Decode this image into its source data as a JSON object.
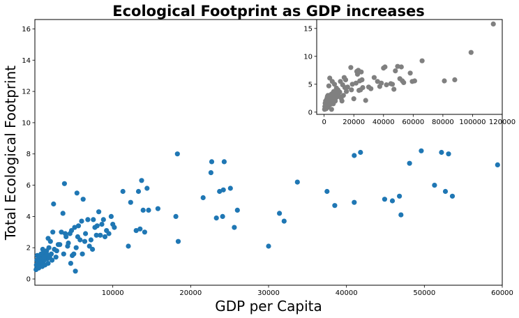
{
  "chart_data": [
    {
      "type": "scatter",
      "title": "Ecological Footprint as GDP increases",
      "xlabel": "GDP per Capita",
      "ylabel": "Total Ecological Footprint",
      "xlim": [
        0,
        60000
      ],
      "ylim": [
        -0.4,
        16.6
      ],
      "xticks": [
        10000,
        20000,
        30000,
        40000,
        50000,
        60000
      ],
      "yticks": [
        0,
        2,
        4,
        6,
        8,
        10,
        12,
        14,
        16
      ],
      "grid": false,
      "color": "#1f77b4",
      "points": [
        [
          150,
          0.6
        ],
        [
          200,
          0.9
        ],
        [
          250,
          1.2
        ],
        [
          300,
          1.5
        ],
        [
          350,
          0.8
        ],
        [
          400,
          1.1
        ],
        [
          450,
          1.4
        ],
        [
          500,
          0.7
        ],
        [
          550,
          1.3
        ],
        [
          600,
          1.0
        ],
        [
          650,
          1.5
        ],
        [
          700,
          0.9
        ],
        [
          750,
          1.2
        ],
        [
          800,
          1.6
        ],
        [
          850,
          1.0
        ],
        [
          900,
          1.3
        ],
        [
          950,
          0.8
        ],
        [
          1000,
          1.1
        ],
        [
          1100,
          1.7
        ],
        [
          1200,
          1.2
        ],
        [
          1300,
          0.9
        ],
        [
          1400,
          1.5
        ],
        [
          1500,
          1.8
        ],
        [
          1600,
          1.3
        ],
        [
          1700,
          1.0
        ],
        [
          1800,
          2.0
        ],
        [
          1900,
          1.4
        ],
        [
          2000,
          2.4
        ],
        [
          2100,
          1.6
        ],
        [
          2200,
          1.2
        ],
        [
          1000,
          1.9
        ],
        [
          1200,
          1.4
        ],
        [
          1500,
          1.6
        ],
        [
          1700,
          2.6
        ],
        [
          2300,
          3.0
        ],
        [
          2400,
          4.8
        ],
        [
          2500,
          1.9
        ],
        [
          2700,
          1.4
        ],
        [
          2800,
          1.8
        ],
        [
          3000,
          2.2
        ],
        [
          3200,
          2.2
        ],
        [
          3400,
          3.0
        ],
        [
          3600,
          4.2
        ],
        [
          3700,
          1.6
        ],
        [
          3800,
          6.1
        ],
        [
          3900,
          2.9
        ],
        [
          4000,
          2.7
        ],
        [
          4200,
          2.1
        ],
        [
          4300,
          2.3
        ],
        [
          4500,
          2.9
        ],
        [
          4600,
          1.0
        ],
        [
          4700,
          3.1
        ],
        [
          4800,
          1.5
        ],
        [
          5000,
          1.6
        ],
        [
          5100,
          3.3
        ],
        [
          5200,
          0.5
        ],
        [
          5300,
          2.0
        ],
        [
          5400,
          5.5
        ],
        [
          5500,
          2.7
        ],
        [
          5600,
          3.4
        ],
        [
          5800,
          2.5
        ],
        [
          6000,
          3.7
        ],
        [
          6100,
          1.6
        ],
        [
          6200,
          5.1
        ],
        [
          6400,
          2.4
        ],
        [
          6500,
          2.9
        ],
        [
          6800,
          3.8
        ],
        [
          7000,
          2.1
        ],
        [
          7200,
          2.5
        ],
        [
          7400,
          1.9
        ],
        [
          7500,
          3.8
        ],
        [
          7700,
          3.3
        ],
        [
          7900,
          2.8
        ],
        [
          8000,
          3.4
        ],
        [
          8200,
          4.3
        ],
        [
          8400,
          2.8
        ],
        [
          8600,
          3.5
        ],
        [
          8800,
          3.8
        ],
        [
          9000,
          2.7
        ],
        [
          9200,
          3.1
        ],
        [
          9500,
          2.9
        ],
        [
          9800,
          4.0
        ],
        [
          10000,
          3.5
        ],
        [
          10200,
          3.3
        ],
        [
          11300,
          5.6
        ],
        [
          12000,
          2.1
        ],
        [
          12300,
          4.9
        ],
        [
          13000,
          3.1
        ],
        [
          13300,
          5.6
        ],
        [
          13500,
          3.2
        ],
        [
          13700,
          6.3
        ],
        [
          13900,
          4.4
        ],
        [
          14100,
          3.0
        ],
        [
          14400,
          5.8
        ],
        [
          14600,
          4.4
        ],
        [
          15800,
          4.5
        ],
        [
          18100,
          4.0
        ],
        [
          18300,
          8.0
        ],
        [
          18400,
          2.4
        ],
        [
          21600,
          5.2
        ],
        [
          22600,
          6.8
        ],
        [
          22700,
          7.5
        ],
        [
          23300,
          3.9
        ],
        [
          23700,
          5.6
        ],
        [
          24100,
          4.0
        ],
        [
          24200,
          5.7
        ],
        [
          24300,
          7.5
        ],
        [
          25100,
          5.8
        ],
        [
          25600,
          3.3
        ],
        [
          26000,
          4.4
        ],
        [
          30000,
          2.1
        ],
        [
          31400,
          4.2
        ],
        [
          32000,
          3.7
        ],
        [
          33700,
          6.2
        ],
        [
          37500,
          5.6
        ],
        [
          38500,
          4.7
        ],
        [
          41000,
          4.9
        ],
        [
          41000,
          7.9
        ],
        [
          41800,
          8.1
        ],
        [
          44900,
          5.1
        ],
        [
          45900,
          5.0
        ],
        [
          46800,
          5.3
        ],
        [
          47000,
          4.1
        ],
        [
          48100,
          7.4
        ],
        [
          49600,
          8.2
        ],
        [
          51300,
          6.0
        ],
        [
          52200,
          8.1
        ],
        [
          52700,
          5.6
        ],
        [
          53100,
          8.0
        ],
        [
          53600,
          5.3
        ],
        [
          59400,
          7.3
        ]
      ]
    },
    {
      "type": "scatter",
      "title": "",
      "xlabel": "",
      "ylabel": "",
      "xlim": [
        -5000,
        120000
      ],
      "ylim": [
        -0.4,
        16.6
      ],
      "xticks": [
        0,
        20000,
        40000,
        60000,
        80000,
        100000,
        120000
      ],
      "yticks": [
        0,
        5,
        10,
        15
      ],
      "grid": false,
      "color": "#808080",
      "points": [
        [
          300,
          0.5
        ],
        [
          500,
          1.0
        ],
        [
          700,
          1.6
        ],
        [
          900,
          0.8
        ],
        [
          1000,
          2.0
        ],
        [
          1200,
          1.3
        ],
        [
          1400,
          0.6
        ],
        [
          1600,
          1.8
        ],
        [
          1800,
          2.4
        ],
        [
          2000,
          1.1
        ],
        [
          2200,
          2.8
        ],
        [
          2400,
          1.5
        ],
        [
          2600,
          3.0
        ],
        [
          2800,
          0.9
        ],
        [
          3000,
          2.2
        ],
        [
          3200,
          4.7
        ],
        [
          3400,
          1.7
        ],
        [
          3600,
          2.6
        ],
        [
          3800,
          6.1
        ],
        [
          4000,
          3.0
        ],
        [
          4200,
          1.4
        ],
        [
          4500,
          2.1
        ],
        [
          4800,
          3.2
        ],
        [
          5000,
          0.5
        ],
        [
          5200,
          2.7
        ],
        [
          5500,
          5.5
        ],
        [
          5800,
          3.4
        ],
        [
          6000,
          2.4
        ],
        [
          6200,
          1.5
        ],
        [
          6500,
          3.7
        ],
        [
          6800,
          2.9
        ],
        [
          7000,
          5.0
        ],
        [
          7200,
          3.1
        ],
        [
          7500,
          2.0
        ],
        [
          7800,
          3.8
        ],
        [
          8000,
          2.6
        ],
        [
          8300,
          4.3
        ],
        [
          8600,
          3.3
        ],
        [
          9000,
          2.8
        ],
        [
          9300,
          4.0
        ],
        [
          9600,
          3.5
        ],
        [
          10000,
          2.9
        ],
        [
          10500,
          3.6
        ],
        [
          11000,
          5.5
        ],
        [
          11500,
          2.5
        ],
        [
          12000,
          2.0
        ],
        [
          12500,
          4.9
        ],
        [
          13000,
          3.0
        ],
        [
          13500,
          6.2
        ],
        [
          14000,
          4.4
        ],
        [
          14500,
          5.8
        ],
        [
          15000,
          3.7
        ],
        [
          15800,
          4.5
        ],
        [
          18000,
          8.0
        ],
        [
          18400,
          4.0
        ],
        [
          19000,
          5.0
        ],
        [
          20000,
          2.4
        ],
        [
          21500,
          5.2
        ],
        [
          22000,
          7.3
        ],
        [
          22500,
          6.8
        ],
        [
          23000,
          7.5
        ],
        [
          23500,
          3.9
        ],
        [
          24000,
          5.6
        ],
        [
          24500,
          4.0
        ],
        [
          25000,
          7.2
        ],
        [
          25500,
          5.8
        ],
        [
          26000,
          4.4
        ],
        [
          28000,
          2.1
        ],
        [
          30000,
          4.5
        ],
        [
          31500,
          4.2
        ],
        [
          33700,
          6.2
        ],
        [
          36000,
          5.5
        ],
        [
          37500,
          4.6
        ],
        [
          38500,
          5.2
        ],
        [
          40000,
          7.9
        ],
        [
          41000,
          8.1
        ],
        [
          42000,
          4.9
        ],
        [
          44900,
          5.1
        ],
        [
          46000,
          5.0
        ],
        [
          47000,
          4.1
        ],
        [
          48000,
          7.4
        ],
        [
          49500,
          8.2
        ],
        [
          51000,
          6.0
        ],
        [
          52000,
          8.1
        ],
        [
          52700,
          5.6
        ],
        [
          53600,
          5.3
        ],
        [
          58000,
          7.0
        ],
        [
          59400,
          5.5
        ],
        [
          61000,
          5.6
        ],
        [
          66000,
          9.2
        ],
        [
          81000,
          5.6
        ],
        [
          88000,
          5.8
        ],
        [
          99000,
          10.7
        ],
        [
          114000,
          15.8
        ]
      ]
    }
  ]
}
